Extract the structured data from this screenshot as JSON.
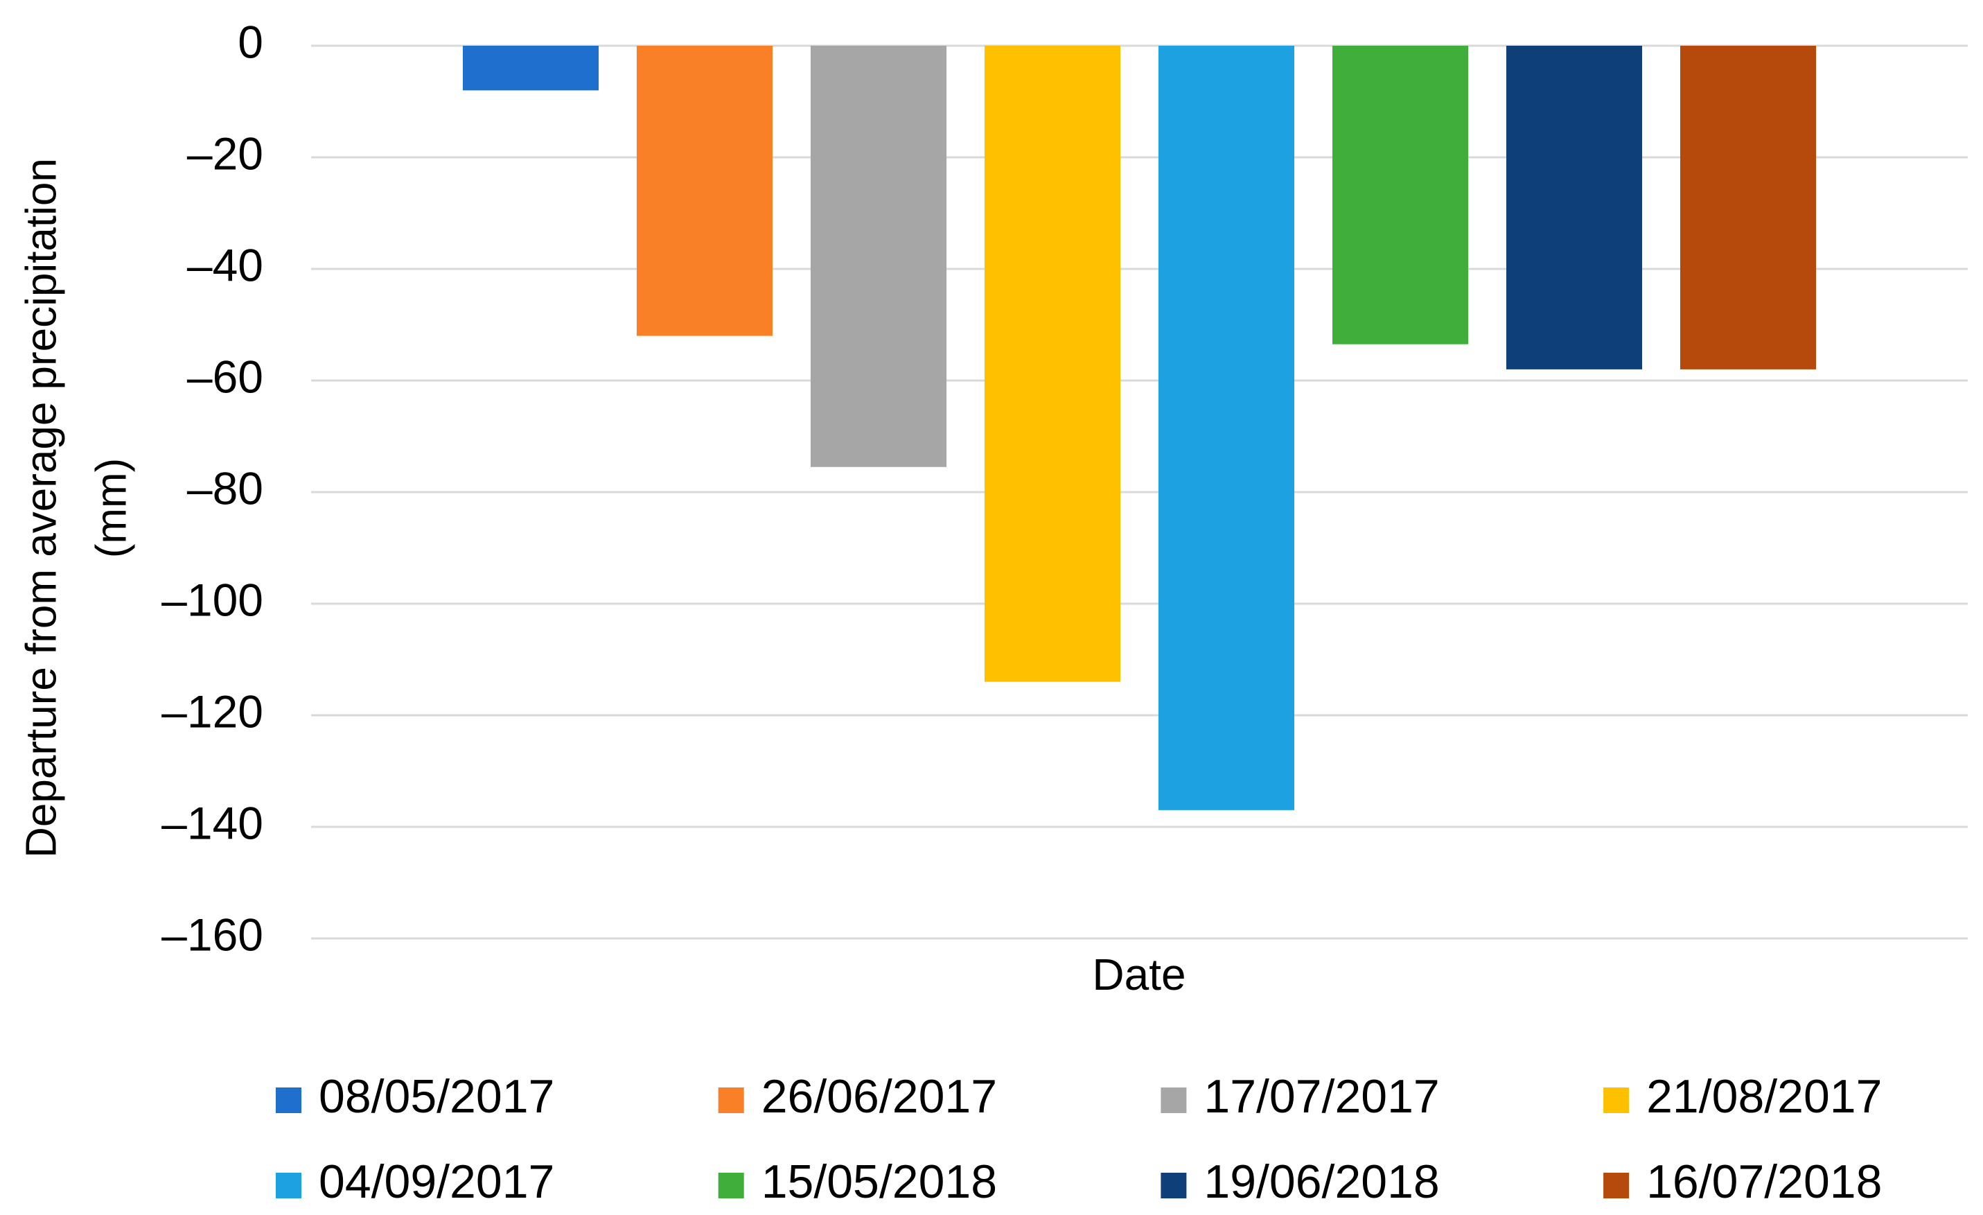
{
  "chart_data": {
    "type": "bar",
    "ylabel": [
      "Departure from average precipitation",
      "(mm)"
    ],
    "xlabel": "Date",
    "categories": [
      null
    ],
    "series": [
      {
        "name": "08/05/2017",
        "color": "#1f6fcf",
        "values": [
          -8
        ]
      },
      {
        "name": "26/06/2017",
        "color": "#f98026",
        "values": [
          -52
        ]
      },
      {
        "name": "17/07/2017",
        "color": "#a6a6a6",
        "values": [
          -75.5
        ]
      },
      {
        "name": "21/08/2017",
        "color": "#ffc000",
        "values": [
          -114
        ]
      },
      {
        "name": "04/09/2017",
        "color": "#1ea1e0",
        "values": [
          -137
        ]
      },
      {
        "name": "15/05/2018",
        "color": "#3fae3a",
        "values": [
          -53.5
        ]
      },
      {
        "name": "19/06/2018",
        "color": "#0e3f78",
        "values": [
          -58
        ]
      },
      {
        "name": "16/07/2018",
        "color": "#b6490c",
        "values": [
          -58
        ]
      }
    ],
    "ylim": [
      -160,
      0
    ],
    "yticks": [
      0,
      {
        "value": -20,
        "label": "–20"
      },
      {
        "value": -40,
        "label": "–40"
      },
      {
        "value": -60,
        "label": "–60"
      },
      {
        "value": -80,
        "label": "–80"
      },
      {
        "value": -100,
        "label": "–100"
      },
      {
        "value": -120,
        "label": "–120"
      },
      {
        "value": -140,
        "label": "–140"
      },
      {
        "value": -160,
        "label": "–160"
      }
    ],
    "grid": true,
    "legend": "bottom"
  }
}
